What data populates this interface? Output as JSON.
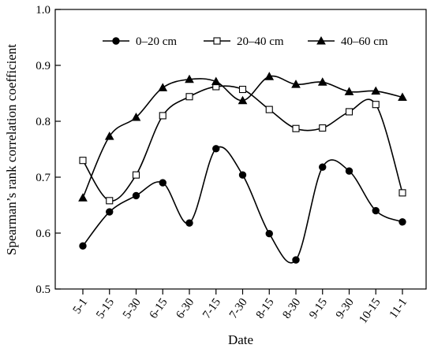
{
  "chart_data": {
    "type": "line",
    "xlabel": "Date",
    "ylabel": "Spearman’s rank correlation coefficient",
    "categories": [
      "5-1",
      "5-15",
      "5-30",
      "6-15",
      "6-30",
      "7-15",
      "7-30",
      "8-15",
      "8-30",
      "9-15",
      "9-30",
      "10-15",
      "11-1"
    ],
    "ylim": [
      0.5,
      1.0
    ],
    "yticks": [
      "0.5",
      "0.6",
      "0.7",
      "0.8",
      "0.9",
      "1.0"
    ],
    "legend_position": "top",
    "grid": false,
    "series": [
      {
        "name": "0–20 cm",
        "marker": "filled-circle",
        "values": [
          0.577,
          0.638,
          0.667,
          0.69,
          0.618,
          0.751,
          0.704,
          0.599,
          0.552,
          0.718,
          0.711,
          0.64,
          0.62
        ]
      },
      {
        "name": "20–40 cm",
        "marker": "open-square",
        "values": [
          0.73,
          0.658,
          0.704,
          0.81,
          0.844,
          0.862,
          0.857,
          0.821,
          0.787,
          0.788,
          0.817,
          0.83,
          0.672
        ]
      },
      {
        "name": "40–60 cm",
        "marker": "filled-triangle",
        "values": [
          0.663,
          0.773,
          0.807,
          0.86,
          0.875,
          0.871,
          0.837,
          0.88,
          0.866,
          0.87,
          0.853,
          0.854,
          0.843
        ]
      }
    ]
  }
}
